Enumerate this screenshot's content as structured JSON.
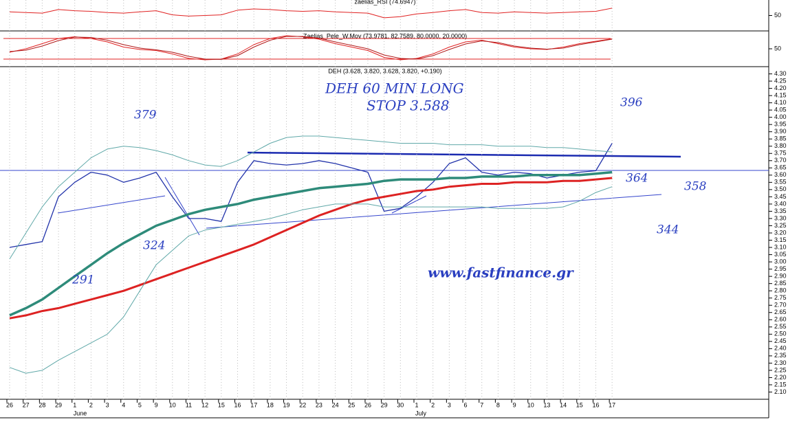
{
  "chart_data": [
    {
      "type": "line",
      "title": "zaelias_RSI (74.6947)",
      "ylim": [
        0,
        100
      ],
      "yticks": [
        50
      ],
      "series": [
        {
          "color": "#e02020",
          "values": [
            62,
            60,
            58,
            70,
            66,
            64,
            60,
            58,
            62,
            66,
            52,
            48,
            50,
            52,
            68,
            72,
            70,
            66,
            64,
            66,
            62,
            60,
            58,
            42,
            46,
            55,
            60,
            66,
            70,
            60,
            58,
            62,
            60,
            58,
            60,
            62,
            64,
            75
          ]
        }
      ]
    },
    {
      "type": "line",
      "title": "Zaelias_Pele_W.Mov (73.9781, 82.7589, 80.0000, 20.0000)",
      "ylim": [
        0,
        100
      ],
      "yticks": [
        50
      ],
      "levels": [
        80,
        20
      ],
      "level_color": "#e02020",
      "series": [
        {
          "color": "#e02020",
          "values": [
            40,
            50,
            65,
            80,
            85,
            80,
            70,
            55,
            48,
            45,
            35,
            22,
            18,
            20,
            35,
            62,
            80,
            88,
            85,
            78,
            65,
            55,
            45,
            25,
            18,
            22,
            35,
            55,
            70,
            75,
            65,
            55,
            50,
            48,
            55,
            65,
            72,
            79
          ]
        },
        {
          "color": "#b01818",
          "values": [
            42,
            46,
            58,
            74,
            84,
            83,
            75,
            62,
            52,
            47,
            40,
            28,
            20,
            19,
            30,
            55,
            75,
            86,
            86,
            81,
            70,
            60,
            50,
            32,
            22,
            20,
            30,
            48,
            64,
            73,
            68,
            58,
            52,
            49,
            52,
            62,
            70,
            78
          ]
        }
      ]
    },
    {
      "type": "line",
      "title": "DEH (3.628, 3.820, 3.628, 3.820, +0.190)",
      "categories": [
        "26",
        "27",
        "28",
        "29",
        "1",
        "2",
        "3",
        "4",
        "5",
        "9",
        "10",
        "11",
        "12",
        "15",
        "16",
        "17",
        "18",
        "19",
        "22",
        "23",
        "24",
        "25",
        "26",
        "29",
        "30",
        "1",
        "2",
        "3",
        "6",
        "7",
        "8",
        "9",
        "10",
        "13",
        "14",
        "15",
        "16",
        "17"
      ],
      "months": [
        null,
        null,
        null,
        null,
        "June",
        null,
        null,
        null,
        null,
        null,
        null,
        null,
        null,
        null,
        null,
        null,
        null,
        null,
        null,
        null,
        null,
        null,
        null,
        null,
        null,
        "July",
        null,
        null,
        null,
        null,
        null,
        null,
        null,
        null,
        null,
        null,
        null,
        null
      ],
      "ylim": [
        2.05,
        4.35
      ],
      "yticks": [
        {
          "value": 2.1,
          "label": "2.10"
        },
        2.15,
        {
          "value": 2.2,
          "label": "2.20"
        },
        2.25,
        {
          "value": 2.3,
          "label": "2.30"
        },
        2.35,
        {
          "value": 2.4,
          "label": "2.40"
        },
        2.45,
        {
          "value": 2.5,
          "label": "2.50"
        },
        2.55,
        {
          "value": 2.6,
          "label": "2.60"
        },
        2.65,
        {
          "value": 2.7,
          "label": "2.70"
        },
        2.75,
        {
          "value": 2.8,
          "label": "2.80"
        },
        2.85,
        {
          "value": 2.9,
          "label": "2.90"
        },
        2.95,
        {
          "value": 3,
          "label": "3.00"
        },
        3.05,
        {
          "value": 3.1,
          "label": "3.10"
        },
        3.15,
        {
          "value": 3.2,
          "label": "3.20"
        },
        3.25,
        {
          "value": 3.3,
          "label": "3.30"
        },
        3.35,
        {
          "value": 3.4,
          "label": "3.40"
        },
        3.45,
        {
          "value": 3.5,
          "label": "3.50"
        },
        3.55,
        {
          "value": 3.6,
          "label": "3.60"
        },
        3.65,
        {
          "value": 3.7,
          "label": "3.70"
        },
        3.75,
        {
          "value": 3.8,
          "label": "3.80"
        },
        3.85,
        {
          "value": 3.9,
          "label": "3.90"
        },
        3.95,
        {
          "value": 4,
          "label": "4.00"
        },
        4.05,
        {
          "value": 4.1,
          "label": "4.10"
        },
        4.15,
        {
          "value": 4.2,
          "label": "4.20"
        },
        4.25,
        {
          "value": 4.3,
          "label": "4.30"
        }
      ],
      "series": [
        {
          "color": "#2233aa",
          "values": [
            3.1,
            3.12,
            3.14,
            3.45,
            3.55,
            3.62,
            3.6,
            3.55,
            3.58,
            3.62,
            3.45,
            3.3,
            3.3,
            3.28,
            3.55,
            3.7,
            3.68,
            3.67,
            3.68,
            3.7,
            3.68,
            3.65,
            3.62,
            3.35,
            3.37,
            3.45,
            3.55,
            3.68,
            3.72,
            3.62,
            3.6,
            3.62,
            3.61,
            3.58,
            3.6,
            3.62,
            3.63,
            3.82
          ]
        },
        {
          "color": "#2e8b7a",
          "values": [
            2.63,
            2.68,
            2.74,
            2.82,
            2.9,
            2.98,
            3.06,
            3.13,
            3.19,
            3.25,
            3.29,
            3.33,
            3.36,
            3.38,
            3.4,
            3.43,
            3.45,
            3.47,
            3.49,
            3.51,
            3.52,
            3.53,
            3.54,
            3.56,
            3.57,
            3.57,
            3.57,
            3.58,
            3.58,
            3.59,
            3.59,
            3.59,
            3.6,
            3.6,
            3.6,
            3.6,
            3.61,
            3.62
          ]
        },
        {
          "color": "#dd2222",
          "values": [
            2.61,
            2.63,
            2.66,
            2.68,
            2.71,
            2.74,
            2.77,
            2.8,
            2.84,
            2.88,
            2.92,
            2.96,
            3.0,
            3.04,
            3.08,
            3.12,
            3.17,
            3.22,
            3.27,
            3.32,
            3.36,
            3.4,
            3.43,
            3.45,
            3.47,
            3.49,
            3.5,
            3.52,
            3.53,
            3.54,
            3.54,
            3.55,
            3.55,
            3.55,
            3.56,
            3.56,
            3.57,
            3.58
          ]
        },
        {
          "color": "#5fa8a8",
          "values": [
            3.02,
            3.2,
            3.38,
            3.52,
            3.62,
            3.72,
            3.78,
            3.8,
            3.79,
            3.77,
            3.74,
            3.7,
            3.67,
            3.66,
            3.7,
            3.76,
            3.82,
            3.86,
            3.87,
            3.87,
            3.86,
            3.85,
            3.84,
            3.83,
            3.82,
            3.82,
            3.82,
            3.81,
            3.81,
            3.81,
            3.8,
            3.8,
            3.8,
            3.79,
            3.79,
            3.78,
            3.77,
            3.76
          ]
        },
        {
          "color": "#5fa8a8",
          "values": [
            2.27,
            2.23,
            2.25,
            2.32,
            2.38,
            2.44,
            2.5,
            2.62,
            2.8,
            2.98,
            3.08,
            3.18,
            3.22,
            3.24,
            3.26,
            3.28,
            3.3,
            3.33,
            3.36,
            3.38,
            3.4,
            3.4,
            3.4,
            3.38,
            3.38,
            3.38,
            3.38,
            3.38,
            3.38,
            3.38,
            3.37,
            3.37,
            3.37,
            3.37,
            3.38,
            3.42,
            3.48,
            3.52
          ]
        }
      ],
      "annotations": [
        "DEH 60 MIN LONG",
        "STOP 3.588",
        "379",
        "396",
        "364",
        "358",
        "344",
        "324",
        "291",
        "www.fastfinance.gr"
      ]
    }
  ]
}
